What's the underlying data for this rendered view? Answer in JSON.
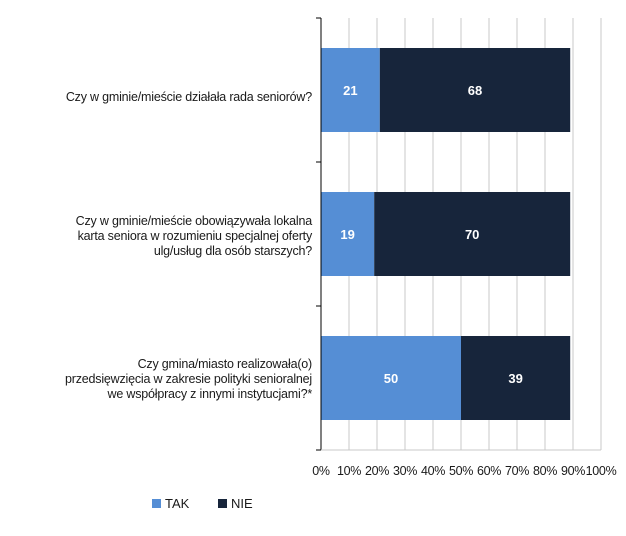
{
  "colors": {
    "tak": "#558ED5",
    "nie": "#17253B",
    "grid": "#c8c8c8",
    "axis": "#000000",
    "label_text": "#ffffff"
  },
  "chart_data": {
    "type": "bar",
    "orientation": "horizontal",
    "stacked": true,
    "categories": [
      "Czy w gminie/mieście działała rada seniorów?",
      "Czy w gminie/mieście obowiązywała lokalna karta seniora w rozumieniu specjalnej oferty ulg/usług dla osób starszych?",
      "Czy gmina/miasto realizowała(o) przedsięwzięcia w zakresie polityki senioralnej we współpracy z innymi instytucjami?*"
    ],
    "series": [
      {
        "name": "TAK",
        "values": [
          21,
          19,
          50
        ]
      },
      {
        "name": "NIE",
        "values": [
          68,
          70,
          39
        ]
      }
    ],
    "xlim": [
      0,
      100
    ],
    "x_ticks": [
      "0%",
      "10%",
      "20%",
      "30%",
      "40%",
      "50%",
      "60%",
      "70%",
      "80%",
      "90%",
      "100%"
    ],
    "grid": true,
    "legend_position": "bottom-left"
  },
  "labels": {
    "cat0": "Czy w gminie/mieście działała rada seniorów?",
    "cat1_l1": "Czy w gminie/mieście obowiązywała lokalna",
    "cat1_l2": "karta seniora w rozumieniu specjalnej oferty",
    "cat1_l3": "ulg/usług dla osób starszych?",
    "cat2_l1": "Czy gmina/miasto realizowała(o)",
    "cat2_l2": "przedsięwzięcia w zakresie polityki senioralnej",
    "cat2_l3": "we współpracy z innymi instytucjami?*"
  },
  "legend": {
    "tak": "TAK",
    "nie": "NIE"
  }
}
